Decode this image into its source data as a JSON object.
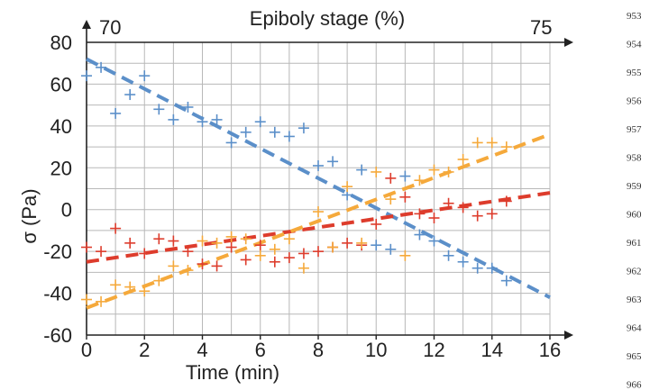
{
  "chart_data": {
    "type": "scatter",
    "xlabel": "Time (min)",
    "ylabel": "σ (Pa)",
    "xlim": [
      0,
      16
    ],
    "ylim": [
      -60,
      80
    ],
    "x_ticks": [
      0,
      2,
      4,
      6,
      8,
      10,
      12,
      14,
      16
    ],
    "y_ticks": [
      80,
      60,
      40,
      20,
      0,
      -20,
      -40,
      -60
    ],
    "grid": true,
    "top_axis": {
      "label": "Epiboly stage (%)",
      "start_label": "70",
      "end_label": "75"
    },
    "series": [
      {
        "color": "#5b8fc9",
        "marker": "+",
        "points": [
          [
            0,
            64
          ],
          [
            0.5,
            68
          ],
          [
            1,
            46
          ],
          [
            1.5,
            55
          ],
          [
            2,
            64
          ],
          [
            2.5,
            48
          ],
          [
            3,
            43
          ],
          [
            3.5,
            49
          ],
          [
            4,
            42
          ],
          [
            4.5,
            43
          ],
          [
            5,
            32
          ],
          [
            5.5,
            37
          ],
          [
            6,
            42
          ],
          [
            6.5,
            37
          ],
          [
            7,
            35
          ],
          [
            7.5,
            39
          ],
          [
            8,
            21
          ],
          [
            8.5,
            23
          ],
          [
            9,
            7
          ],
          [
            9.5,
            19
          ],
          [
            10,
            -17
          ],
          [
            10.5,
            -19
          ],
          [
            11,
            16
          ],
          [
            11.5,
            -12
          ],
          [
            12,
            -15
          ],
          [
            12.5,
            -22
          ],
          [
            13,
            -25
          ],
          [
            13.5,
            -28
          ],
          [
            14,
            -28
          ],
          [
            14.5,
            -34
          ]
        ],
        "trend": [
          [
            0,
            72
          ],
          [
            16,
            -42
          ]
        ]
      },
      {
        "color": "#dd3c2c",
        "marker": "+",
        "points": [
          [
            0,
            -18
          ],
          [
            0.5,
            -20
          ],
          [
            1,
            -9
          ],
          [
            1.5,
            -16
          ],
          [
            2,
            -21
          ],
          [
            2.5,
            -14
          ],
          [
            3,
            -15
          ],
          [
            3.5,
            -20
          ],
          [
            4,
            -26
          ],
          [
            4.5,
            -27
          ],
          [
            5,
            -18
          ],
          [
            5.5,
            -24
          ],
          [
            6,
            -17
          ],
          [
            6.5,
            -25
          ],
          [
            7,
            -23
          ],
          [
            7.5,
            -21
          ],
          [
            8,
            -20
          ],
          [
            8.5,
            -18
          ],
          [
            9,
            -16
          ],
          [
            9.5,
            -17
          ],
          [
            10,
            -7
          ],
          [
            10.5,
            15
          ],
          [
            11,
            6
          ],
          [
            11.5,
            -2
          ],
          [
            12,
            -4
          ],
          [
            12.5,
            3
          ],
          [
            13,
            1
          ],
          [
            13.5,
            -3
          ],
          [
            14,
            -2
          ],
          [
            14.5,
            4
          ]
        ],
        "trend": [
          [
            0,
            -25
          ],
          [
            16,
            8
          ]
        ]
      },
      {
        "color": "#f5a93b",
        "marker": "+",
        "points": [
          [
            0,
            -43
          ],
          [
            0.5,
            -44
          ],
          [
            1,
            -36
          ],
          [
            1.5,
            -37
          ],
          [
            2,
            -39
          ],
          [
            2.5,
            -34
          ],
          [
            3,
            -27
          ],
          [
            3.5,
            -29
          ],
          [
            4,
            -15
          ],
          [
            4.5,
            -16
          ],
          [
            5,
            -13
          ],
          [
            5.5,
            -14
          ],
          [
            6,
            -22
          ],
          [
            6.5,
            -19
          ],
          [
            7,
            -14
          ],
          [
            7.5,
            -28
          ],
          [
            8,
            -1
          ],
          [
            8.5,
            -18
          ],
          [
            9,
            11
          ],
          [
            9.5,
            -16
          ],
          [
            10,
            18
          ],
          [
            10.5,
            5
          ],
          [
            11,
            -22
          ],
          [
            11.5,
            14
          ],
          [
            12,
            19
          ],
          [
            12.5,
            18
          ],
          [
            13,
            24
          ],
          [
            13.5,
            32
          ],
          [
            14,
            32
          ],
          [
            14.5,
            30
          ]
        ],
        "trend": [
          [
            0,
            -47
          ],
          [
            16,
            36
          ]
        ]
      }
    ]
  },
  "line_numbers": [
    "953",
    "954",
    "955",
    "956",
    "957",
    "958",
    "959",
    "960",
    "961",
    "962",
    "963",
    "964",
    "965",
    "966"
  ]
}
